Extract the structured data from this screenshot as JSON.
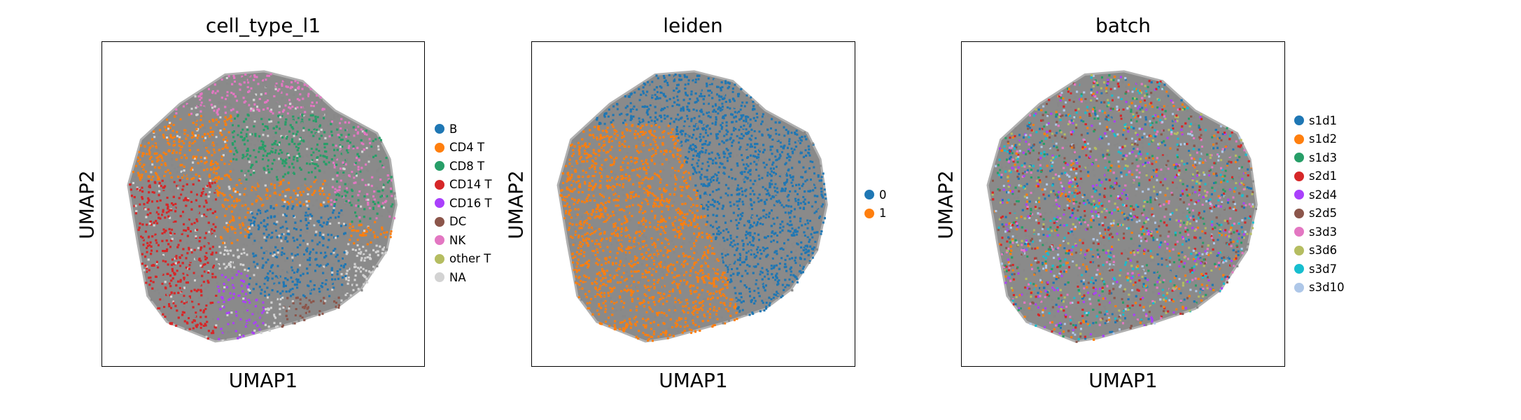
{
  "chart_data": [
    {
      "type": "scatter",
      "title": "cell_type_l1",
      "xlabel": "UMAP1",
      "ylabel": "UMAP2",
      "grid": false,
      "legend_placement": "right",
      "legend": [
        {
          "name": "B",
          "color": "#1f77b4"
        },
        {
          "name": "CD4 T",
          "color": "#ff7f0e"
        },
        {
          "name": "CD8 T",
          "color": "#279e68"
        },
        {
          "name": "CD14 T",
          "color": "#d62728"
        },
        {
          "name": "CD16 T",
          "color": "#aa40fc"
        },
        {
          "name": "DC",
          "color": "#8c564b"
        },
        {
          "name": "NK",
          "color": "#e377c2"
        },
        {
          "name": "other T",
          "color": "#b5bd61"
        },
        {
          "name": "NA",
          "color": "#d3d3d3"
        }
      ]
    },
    {
      "type": "scatter",
      "title": "leiden",
      "xlabel": "UMAP1",
      "ylabel": "UMAP2",
      "grid": false,
      "legend_placement": "right",
      "legend": [
        {
          "name": "0",
          "color": "#1f77b4"
        },
        {
          "name": "1",
          "color": "#ff7f0e"
        }
      ]
    },
    {
      "type": "scatter",
      "title": "batch",
      "xlabel": "UMAP1",
      "ylabel": "UMAP2",
      "grid": false,
      "legend_placement": "right",
      "legend": [
        {
          "name": "s1d1",
          "color": "#1f77b4"
        },
        {
          "name": "s1d2",
          "color": "#ff7f0e"
        },
        {
          "name": "s1d3",
          "color": "#279e68"
        },
        {
          "name": "s2d1",
          "color": "#d62728"
        },
        {
          "name": "s2d4",
          "color": "#aa40fc"
        },
        {
          "name": "s2d5",
          "color": "#8c564b"
        },
        {
          "name": "s3d3",
          "color": "#e377c2"
        },
        {
          "name": "s3d6",
          "color": "#b5bd61"
        },
        {
          "name": "s3d7",
          "color": "#17becf"
        },
        {
          "name": "s3d10",
          "color": "#aec7e8"
        }
      ]
    }
  ]
}
